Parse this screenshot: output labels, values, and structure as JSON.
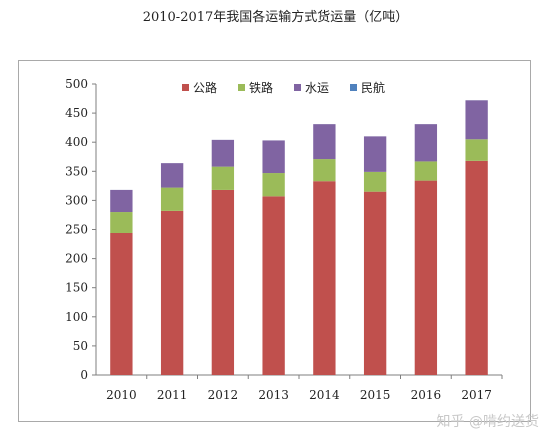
{
  "chart_data": {
    "type": "bar",
    "stacked": true,
    "title": "2010-2017年我国各运输方式货运量（亿吨）",
    "categories": [
      "2010",
      "2011",
      "2012",
      "2013",
      "2014",
      "2015",
      "2016",
      "2017"
    ],
    "series": [
      {
        "name": "公路",
        "color": "#c0504d",
        "values": [
          244,
          282,
          318,
          307,
          333,
          315,
          334,
          368
        ]
      },
      {
        "name": "铁路",
        "color": "#9bbb59",
        "values": [
          36,
          40,
          40,
          40,
          38,
          34,
          33,
          37
        ]
      },
      {
        "name": "水运",
        "color": "#8064a2",
        "values": [
          38,
          42,
          46,
          56,
          60,
          61,
          64,
          67
        ]
      },
      {
        "name": "民航",
        "color": "#4f81bd",
        "values": [
          0.06,
          0.06,
          0.05,
          0.06,
          0.06,
          0.06,
          0.07,
          0.07
        ]
      }
    ],
    "yticks": [
      0,
      50,
      100,
      150,
      200,
      250,
      300,
      350,
      400,
      450,
      500
    ],
    "ylim": [
      0,
      500
    ],
    "grid": false,
    "legend_position": "top-right"
  },
  "watermark": "知乎 @啃约送货"
}
